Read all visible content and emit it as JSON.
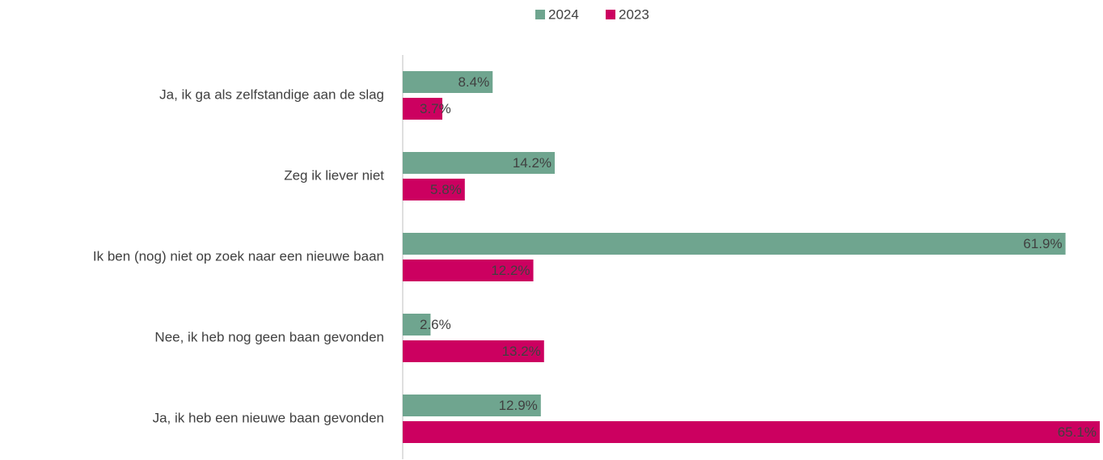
{
  "chart_data": {
    "type": "bar",
    "orientation": "horizontal",
    "categories": [
      "Ja, ik ga als zelfstandige aan de slag",
      "Zeg ik liever niet",
      "Ik ben (nog) niet op zoek naar een nieuwe baan",
      "Nee, ik heb nog geen baan gevonden",
      "Ja, ik heb een nieuwe baan gevonden"
    ],
    "series": [
      {
        "name": "2024",
        "color": "#6fa58f",
        "values": [
          8.4,
          14.2,
          61.9,
          2.6,
          12.9
        ],
        "value_labels": [
          "8.4%",
          "14.2%",
          "61.9%",
          "2.6%",
          "12.9%"
        ]
      },
      {
        "name": "2023",
        "color": "#cc0060",
        "values": [
          3.7,
          5.8,
          12.2,
          13.2,
          65.1
        ],
        "value_labels": [
          "3.7%",
          "5.8%",
          "12.2%",
          "13.2%",
          "65.1%"
        ]
      }
    ],
    "legend": "top"
  }
}
